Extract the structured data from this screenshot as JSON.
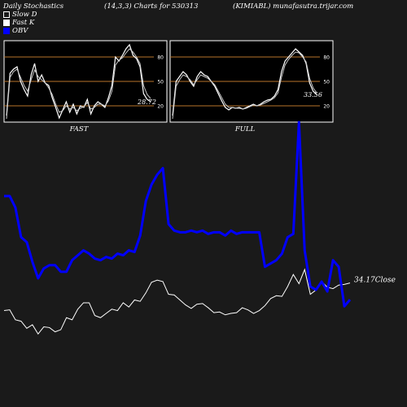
{
  "header": {
    "title": "Daily Stochastics",
    "params": "(14,3,3) Charts for 530313",
    "source": "(KIMIABL) munafasutra.trijar.com"
  },
  "legend": [
    {
      "label": "Slow  D",
      "color": "#1a1a1a",
      "border": "#ffffff"
    },
    {
      "label": "Fast K",
      "color": "#ffffff",
      "border": "#ffffff"
    },
    {
      "label": "OBV",
      "color": "#0000ff",
      "border": "#0000ff"
    }
  ],
  "colors": {
    "background": "#1a1a1a",
    "panel": "#000000",
    "panel_border": "#ffffff",
    "level_line": "#b8742a",
    "obv": "#0000ff",
    "price": "#ffffff"
  },
  "chart_data": [
    {
      "type": "line",
      "panel": "FAST",
      "caption": "FAST",
      "ylim": [
        0,
        100
      ],
      "yticks": [
        80,
        50,
        20
      ],
      "levels": [
        80,
        50,
        20
      ],
      "last_value_label": "28.72",
      "series": [
        {
          "name": "Fast K",
          "values": [
            8,
            60,
            65,
            68,
            50,
            40,
            32,
            58,
            72,
            50,
            58,
            48,
            45,
            30,
            18,
            5,
            15,
            25,
            12,
            22,
            10,
            20,
            18,
            28,
            10,
            20,
            25,
            22,
            18,
            30,
            45,
            80,
            75,
            82,
            90,
            95,
            82,
            78,
            68,
            35,
            28,
            25
          ]
        },
        {
          "name": "Slow  D",
          "values": [
            4,
            55,
            62,
            65,
            55,
            45,
            38,
            52,
            64,
            56,
            52,
            48,
            42,
            34,
            22,
            12,
            14,
            20,
            16,
            18,
            14,
            17,
            19,
            24,
            16,
            18,
            22,
            22,
            20,
            26,
            38,
            70,
            76,
            79,
            85,
            90,
            86,
            80,
            72,
            45,
            34,
            29
          ]
        }
      ]
    },
    {
      "type": "line",
      "panel": "FULL",
      "caption": "FULL",
      "ylim": [
        0,
        100
      ],
      "yticks": [
        80,
        50,
        20
      ],
      "levels": [
        80,
        50,
        20
      ],
      "last_value_label": "33.56",
      "series": [
        {
          "name": "Fast K",
          "values": [
            8,
            50,
            56,
            62,
            58,
            50,
            44,
            56,
            62,
            58,
            56,
            50,
            44,
            35,
            26,
            18,
            15,
            18,
            17,
            18,
            16,
            18,
            20,
            22,
            20,
            22,
            25,
            27,
            28,
            32,
            40,
            62,
            75,
            80,
            85,
            90,
            86,
            82,
            72,
            48,
            38,
            34
          ]
        },
        {
          "name": "Slow  D",
          "values": [
            4,
            44,
            52,
            58,
            56,
            52,
            46,
            52,
            58,
            56,
            54,
            50,
            46,
            38,
            30,
            22,
            18,
            18,
            17,
            17,
            16,
            17,
            19,
            21,
            20,
            21,
            23,
            25,
            27,
            30,
            36,
            55,
            70,
            77,
            82,
            86,
            85,
            80,
            74,
            54,
            42,
            36
          ]
        }
      ]
    },
    {
      "type": "line",
      "panel": "MAIN",
      "close_label": "34.17",
      "close_caption": "Close",
      "series": [
        {
          "name": "OBV",
          "values": [
            0.55,
            0.55,
            0.48,
            0.3,
            0.27,
            0.15,
            0.05,
            0.11,
            0.13,
            0.13,
            0.09,
            0.09,
            0.16,
            0.19,
            0.22,
            0.2,
            0.17,
            0.16,
            0.18,
            0.17,
            0.2,
            0.19,
            0.22,
            0.21,
            0.31,
            0.52,
            0.62,
            0.68,
            0.72,
            0.38,
            0.34,
            0.33,
            0.33,
            0.34,
            0.33,
            0.34,
            0.32,
            0.33,
            0.33,
            0.31,
            0.34,
            0.32,
            0.33,
            0.33,
            0.33,
            0.33,
            0.12,
            0.14,
            0.16,
            0.2,
            0.3,
            0.32,
            1.0,
            0.22,
            0.0,
            -0.02,
            0.03,
            -0.03,
            0.16,
            0.12,
            -0.12,
            -0.08
          ]
        },
        {
          "name": "Close",
          "values": [
            0.35,
            0.36,
            0.22,
            0.2,
            0.1,
            0.15,
            0.02,
            0.12,
            0.11,
            0.05,
            0.08,
            0.25,
            0.22,
            0.37,
            0.46,
            0.46,
            0.28,
            0.25,
            0.31,
            0.37,
            0.35,
            0.46,
            0.4,
            0.5,
            0.48,
            0.6,
            0.75,
            0.78,
            0.76,
            0.58,
            0.57,
            0.5,
            0.43,
            0.38,
            0.44,
            0.45,
            0.39,
            0.32,
            0.33,
            0.29,
            0.31,
            0.32,
            0.39,
            0.36,
            0.31,
            0.35,
            0.42,
            0.52,
            0.56,
            0.55,
            0.69,
            0.86,
            0.73,
            0.93,
            0.58,
            0.64,
            0.76,
            0.68,
            0.66,
            0.71,
            0.72,
            0.74
          ]
        }
      ]
    }
  ]
}
